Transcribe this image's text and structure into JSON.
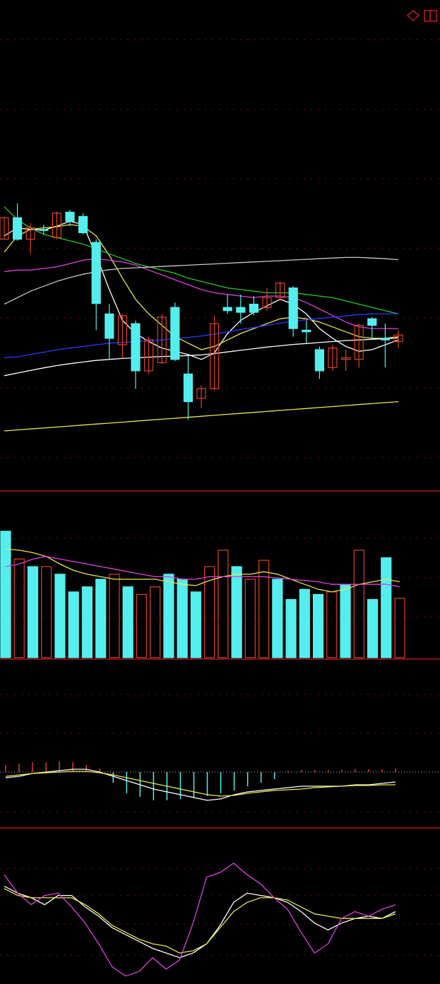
{
  "colors": {
    "background": "#000000",
    "grid": "#7a1010",
    "separator": "#b01818",
    "up": "#e0402a",
    "down": "#55eeee",
    "ma_white": "#ffffff",
    "ma_yellow": "#e8e84a",
    "ma_magenta": "#e040e0",
    "ma_green": "#22cc22",
    "ma_blue": "#2a3aff",
    "ma_gray": "#c8c8c8"
  },
  "icons": {
    "diamond": "diamond-icon",
    "square": "square-icon"
  },
  "chart_data": [
    {
      "type": "candlestick",
      "grid": true,
      "ylim": [
        0,
        100
      ],
      "candles": [
        {
          "open": 59.0,
          "close": 65.6,
          "high": 66.0,
          "low": 59.0
        },
        {
          "open": 65.6,
          "close": 59.0,
          "high": 70.0,
          "low": 58.5
        },
        {
          "open": 59.0,
          "close": 62.5,
          "high": 64.0,
          "low": 54.5
        },
        {
          "open": 62.0,
          "close": 61.8,
          "high": 63.5,
          "low": 60.5
        },
        {
          "open": 59.5,
          "close": 67.0,
          "high": 67.5,
          "low": 59.0
        },
        {
          "open": 67.3,
          "close": 64.5,
          "high": 68.0,
          "low": 63.0
        },
        {
          "open": 66.0,
          "close": 61.0,
          "high": 67.0,
          "low": 60.5
        },
        {
          "open": 58.0,
          "close": 39.2,
          "high": 59.0,
          "low": 31.0
        },
        {
          "open": 36.0,
          "close": 28.5,
          "high": 39.0,
          "low": 22.0
        },
        {
          "open": 26.5,
          "close": 35.5,
          "high": 36.0,
          "low": 22.5
        },
        {
          "open": 33.0,
          "close": 18.5,
          "high": 34.0,
          "low": 13.0
        },
        {
          "open": 18.5,
          "close": 28.0,
          "high": 29.0,
          "low": 17.5
        },
        {
          "open": 21.0,
          "close": 35.0,
          "high": 36.0,
          "low": 20.5
        },
        {
          "open": 38.0,
          "close": 22.0,
          "high": 39.5,
          "low": 21.5
        },
        {
          "open": 17.5,
          "close": 9.0,
          "high": 23.0,
          "low": 3.5
        },
        {
          "open": 10.0,
          "close": 13.0,
          "high": 14.0,
          "low": 7.0
        },
        {
          "open": 13.0,
          "close": 33.0,
          "high": 35.5,
          "low": 12.5
        },
        {
          "open": 38.0,
          "close": 37.0,
          "high": 42.0,
          "low": 36.0
        },
        {
          "open": 38.0,
          "close": 36.5,
          "high": 42.0,
          "low": 33.0
        },
        {
          "open": 39.0,
          "close": 36.5,
          "high": 41.5,
          "low": 35.5
        },
        {
          "open": 38.0,
          "close": 41.0,
          "high": 44.0,
          "low": 37.0
        },
        {
          "open": 41.0,
          "close": 45.5,
          "high": 46.0,
          "low": 40.0
        },
        {
          "open": 44.0,
          "close": 31.5,
          "high": 44.5,
          "low": 29.0
        },
        {
          "open": 31.0,
          "close": 30.5,
          "high": 34.0,
          "low": 27.0
        },
        {
          "open": 25.0,
          "close": 18.5,
          "high": 26.0,
          "low": 16.0
        },
        {
          "open": 19.5,
          "close": 25.5,
          "high": 26.5,
          "low": 18.5
        },
        {
          "open": 22.0,
          "close": 22.5,
          "high": 25.0,
          "low": 18.5
        },
        {
          "open": 22.0,
          "close": 32.5,
          "high": 33.0,
          "low": 19.5
        },
        {
          "open": 34.5,
          "close": 32.5,
          "high": 35.0,
          "low": 28.0
        },
        {
          "open": 28.5,
          "close": 28.0,
          "high": 33.0,
          "low": 19.5
        },
        {
          "open": 27.5,
          "close": 29.5,
          "high": 31.0,
          "low": 25.5
        }
      ],
      "lines": [
        {
          "color": "white",
          "values": [
            60.0,
            62.5,
            62.0,
            61.8,
            63.0,
            64.5,
            63.5,
            54.0,
            43.5,
            34.0,
            30.0,
            27.5,
            25.5,
            24.5,
            23.5,
            22.0,
            24.0,
            30.0,
            34.0,
            36.5,
            38.5,
            40.5,
            39.0,
            36.0,
            31.5,
            28.5,
            26.0,
            24.5,
            25.0,
            26.5,
            28.0
          ]
        },
        {
          "color": "yellow",
          "values": [
            55.0,
            60.0,
            62.0,
            62.5,
            62.8,
            63.5,
            63.0,
            60.0,
            54.0,
            47.0,
            40.5,
            36.0,
            32.5,
            29.0,
            27.0,
            25.0,
            26.0,
            28.0,
            30.0,
            31.5,
            33.0,
            34.5,
            35.0,
            34.5,
            33.5,
            32.0,
            30.5,
            29.0,
            28.5,
            28.5,
            29.0
          ]
        },
        {
          "color": "magenta",
          "values": [
            49.0,
            49.5,
            49.5,
            50.0,
            50.5,
            51.5,
            52.5,
            53.0,
            52.5,
            52.0,
            51.0,
            49.5,
            48.0,
            46.5,
            45.0,
            43.5,
            42.5,
            42.0,
            41.5,
            41.0,
            41.5,
            41.5,
            41.0,
            39.5,
            37.5,
            35.5,
            33.5,
            32.0,
            31.5,
            31.5,
            31.5
          ]
        },
        {
          "color": "green",
          "values": [
            69.0,
            65.0,
            62.5,
            60.5,
            59.5,
            58.5,
            57.5,
            56.0,
            54.5,
            53.0,
            51.5,
            50.5,
            49.5,
            48.5,
            47.0,
            46.0,
            45.0,
            44.0,
            43.5,
            43.0,
            42.5,
            42.5,
            42.5,
            42.0,
            41.5,
            41.0,
            40.0,
            39.0,
            38.0,
            37.0,
            36.0
          ]
        },
        {
          "color": "blue",
          "values": [
            22.5,
            22.8,
            23.5,
            24.2,
            25.0,
            25.5,
            26.0,
            26.5,
            27.0,
            27.2,
            27.5,
            27.7,
            28.0,
            28.4,
            28.8,
            29.2,
            29.8,
            30.5,
            31.2,
            31.8,
            32.5,
            33.2,
            33.8,
            34.2,
            34.6,
            35.0,
            35.4,
            35.8,
            36.0,
            36.0,
            36.0
          ]
        },
        {
          "color": "gray",
          "values": [
            39.0,
            41.0,
            43.0,
            44.5,
            46.0,
            47.2,
            48.2,
            49.0,
            49.6,
            50.0,
            50.2,
            50.4,
            50.6,
            50.8,
            51.0,
            51.2,
            51.4,
            51.6,
            51.8,
            52.0,
            52.2,
            52.4,
            52.6,
            52.8,
            53.0,
            53.2,
            53.4,
            53.4,
            53.2,
            53.0,
            52.7
          ]
        },
        {
          "color": "white",
          "values": [
            17.0,
            17.8,
            18.6,
            19.4,
            20.1,
            20.7,
            21.2,
            21.7,
            22.0,
            22.3,
            22.5,
            22.7,
            22.9,
            23.0,
            23.2,
            23.4,
            23.8,
            24.3,
            24.8,
            25.3,
            25.8,
            26.2,
            26.6,
            26.9,
            27.2,
            27.5,
            27.8,
            28.0,
            28.2,
            28.4,
            28.6
          ]
        },
        {
          "color": "yellow",
          "values": [
            0.0,
            0.3,
            0.6,
            0.9,
            1.2,
            1.5,
            1.8,
            2.1,
            2.4,
            2.7,
            3.0,
            3.3,
            3.6,
            3.9,
            4.2,
            4.5,
            4.8,
            5.1,
            5.4,
            5.7,
            6.0,
            6.3,
            6.6,
            6.9,
            7.2,
            7.5,
            7.8,
            8.1,
            8.4,
            8.7,
            9.0
          ]
        }
      ]
    },
    {
      "type": "bar",
      "grid": true,
      "ylim": [
        0,
        100
      ],
      "values": [
        100,
        78,
        72,
        72,
        66,
        52,
        56,
        62,
        66,
        56,
        50,
        56,
        66,
        62,
        52,
        72,
        85,
        72,
        62,
        77,
        62,
        46,
        54,
        50,
        52,
        58,
        85,
        46,
        79,
        47
      ],
      "up_down": [
        "down",
        "up",
        "down",
        "up",
        "down",
        "down",
        "down",
        "down",
        "up",
        "down",
        "up",
        "up",
        "down",
        "down",
        "down",
        "up",
        "up",
        "down",
        "up",
        "up",
        "down",
        "down",
        "down",
        "down",
        "up",
        "down",
        "up",
        "down",
        "down",
        "up"
      ],
      "lines": [
        {
          "color": "yellow",
          "values": [
            86,
            85,
            83,
            80,
            74,
            69,
            66,
            64,
            62,
            62,
            62,
            62,
            60,
            58,
            57,
            61,
            64,
            66,
            66,
            68,
            66,
            62,
            58,
            54,
            52,
            54,
            58,
            60,
            62,
            60
          ]
        },
        {
          "color": "magenta",
          "values": [
            72,
            74,
            78,
            80,
            78,
            76,
            74,
            72,
            70,
            68,
            66,
            64,
            64,
            62,
            62,
            64,
            64,
            64,
            64,
            64,
            63,
            62,
            61,
            60,
            58,
            58,
            58,
            58,
            58,
            56
          ]
        }
      ]
    },
    {
      "type": "bar",
      "grid": true,
      "ylim": [
        -100,
        100
      ],
      "values": [
        10,
        12,
        14,
        14,
        15,
        14,
        10,
        5,
        -15,
        -30,
        -35,
        -40,
        -40,
        -38,
        -36,
        -34,
        -30,
        -26,
        -20,
        -15,
        -10,
        2,
        3,
        3,
        3,
        3,
        4,
        4,
        4,
        5
      ],
      "lines": [
        {
          "color": "white",
          "values": [
            -8,
            -6,
            -2,
            0,
            2,
            4,
            4,
            0,
            -6,
            -12,
            -18,
            -24,
            -28,
            -32,
            -36,
            -40,
            -38,
            -32,
            -28,
            -26,
            -24,
            -22,
            -20,
            -20,
            -20,
            -20,
            -18,
            -18,
            -16,
            -14
          ]
        },
        {
          "color": "yellow",
          "values": [
            -6,
            -4,
            -2,
            -1,
            0,
            1,
            1,
            -1,
            -4,
            -8,
            -12,
            -16,
            -20,
            -24,
            -28,
            -32,
            -34,
            -33,
            -30,
            -28,
            -26,
            -25,
            -24,
            -22,
            -21,
            -20,
            -19,
            -19,
            -18,
            -18
          ]
        }
      ]
    },
    {
      "type": "line",
      "grid": true,
      "ylim": [
        0,
        100
      ],
      "lines": [
        {
          "color": "white",
          "values": [
            80,
            74,
            70,
            64,
            72,
            72,
            62,
            54,
            44,
            38,
            32,
            26,
            22,
            18,
            22,
            30,
            46,
            66,
            74,
            72,
            70,
            66,
            58,
            48,
            42,
            48,
            52,
            54,
            52,
            58
          ]
        },
        {
          "color": "yellow",
          "values": [
            78,
            72,
            70,
            70,
            70,
            70,
            64,
            56,
            46,
            40,
            34,
            30,
            28,
            22,
            24,
            30,
            44,
            58,
            66,
            70,
            70,
            68,
            62,
            56,
            54,
            52,
            52,
            52,
            52,
            56
          ]
        },
        {
          "color": "magenta",
          "values": [
            90,
            74,
            64,
            72,
            74,
            62,
            48,
            30,
            10,
            2,
            6,
            18,
            8,
            16,
            48,
            88,
            92,
            100,
            90,
            82,
            70,
            60,
            40,
            22,
            30,
            52,
            58,
            54,
            60,
            64
          ]
        }
      ]
    }
  ]
}
